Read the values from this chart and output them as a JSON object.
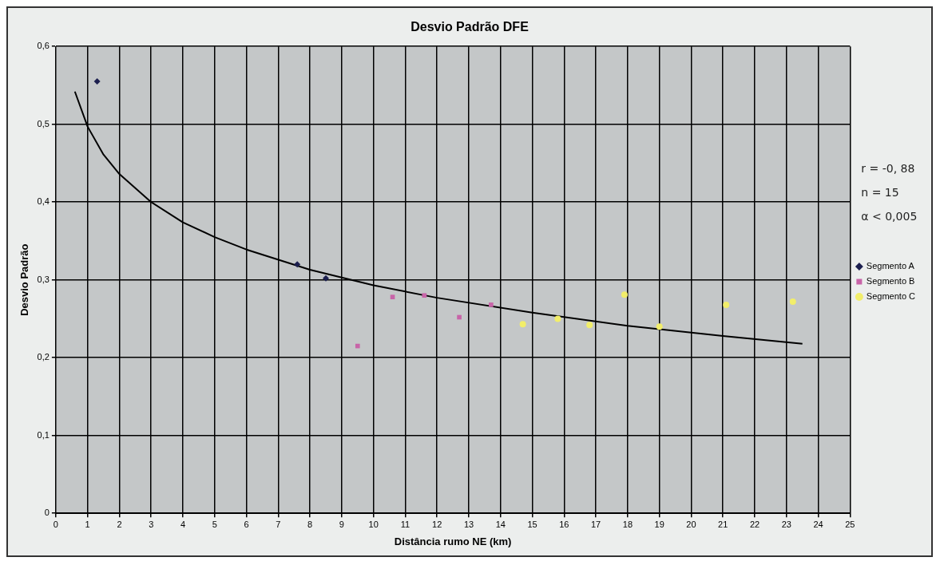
{
  "chart_data": {
    "type": "scatter",
    "title": "Desvio Padrão DFE",
    "xlabel": "Distância rumo NE (km)",
    "ylabel": "Desvio Padrão",
    "xlim": [
      0,
      25
    ],
    "xticks": [
      0,
      1,
      2,
      3,
      4,
      5,
      6,
      7,
      8,
      9,
      10,
      11,
      12,
      13,
      14,
      15,
      16,
      17,
      18,
      19,
      20,
      21,
      22,
      23,
      24,
      25
    ],
    "ylim": [
      0,
      0.6
    ],
    "yticks": [
      0,
      {
        "value": 0.1,
        "label": "0,1"
      },
      {
        "value": 0.2,
        "label": "0,2"
      },
      {
        "value": 0.3,
        "label": "0,3"
      },
      {
        "value": 0.4,
        "label": "0,4"
      },
      {
        "value": 0.5,
        "label": "0,5"
      },
      {
        "value": 0.6,
        "label": "0,6"
      }
    ],
    "grid": true,
    "legend": "right",
    "annotations": [
      "r = -0, 88",
      "n = 15",
      "α < 0,005"
    ],
    "series": [
      {
        "name": "Segmento A",
        "color": "#1c1f4f",
        "marker": "diamond",
        "x": [
          1.3,
          7.6,
          8.5
        ],
        "values": [
          0.555,
          0.32,
          0.302
        ]
      },
      {
        "name": "Segmento B",
        "color": "#c864a8",
        "marker": "square",
        "x": [
          9.5,
          10.6,
          11.6,
          12.7,
          13.7
        ],
        "values": [
          0.215,
          0.278,
          0.28,
          0.252,
          0.268
        ]
      },
      {
        "name": "Segmento C",
        "color": "#f2ee6a",
        "marker": "circle",
        "x": [
          14.7,
          15.8,
          16.8,
          17.9,
          19.0,
          21.1,
          23.2
        ],
        "values": [
          0.243,
          0.25,
          0.242,
          0.281,
          0.24,
          0.268,
          0.272
        ]
      },
      {
        "type": "line",
        "color": "#000000",
        "marker": "none",
        "x": [
          0.6,
          1,
          1.5,
          2,
          3,
          4,
          5,
          6,
          8,
          10,
          12,
          15,
          18,
          21,
          23.5
        ],
        "values": [
          0.542,
          0.497,
          0.461,
          0.436,
          0.4,
          0.374,
          0.355,
          0.339,
          0.313,
          0.293,
          0.277,
          0.258,
          0.241,
          0.228,
          0.218
        ]
      }
    ]
  }
}
